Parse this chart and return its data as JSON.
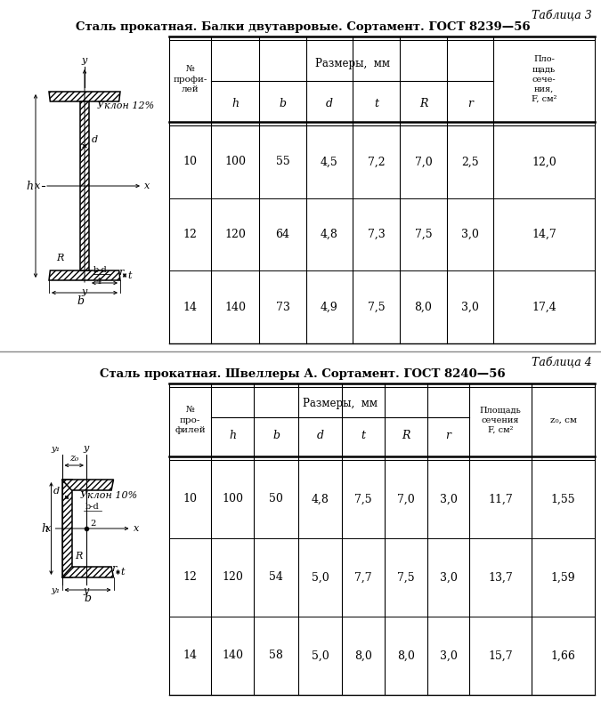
{
  "table3_title_label": "Таблица 3",
  "table3_title": "Сталь прокатная. Балки двутавровые. Сортамент. ГОСТ 8239—56",
  "table3_subheader": "Размеры,  мм",
  "table3_col_labels": [
    "№\nпрофи-\nлей",
    "h",
    "b",
    "d",
    "t",
    "R",
    "r",
    "Пло-\nщадь\nсече-\nния,\nF, см²"
  ],
  "table3_data": [
    [
      "10",
      "100",
      "55",
      "4,5",
      "7,2",
      "7,0",
      "2,5",
      "12,0"
    ],
    [
      "12",
      "120",
      "64",
      "4,8",
      "7,3",
      "7,5",
      "3,0",
      "14,7"
    ],
    [
      "14",
      "140",
      "73",
      "4,9",
      "7,5",
      "8,0",
      "3,0",
      "17,4"
    ]
  ],
  "table4_title_label": "Таблица 4",
  "table4_title": "Сталь прокатная. Швеллеры А. Сортамент. ГОСТ 8240—56",
  "table4_subheader": "Размеры,  мм",
  "table4_col_labels": [
    "№\nпро-\nфилей",
    "h",
    "b",
    "d",
    "t",
    "R",
    "r",
    "Площадь\nсечения\nF, см²",
    "z₀, см"
  ],
  "table4_data": [
    [
      "10",
      "100",
      "50",
      "4,8",
      "7,5",
      "7,0",
      "3,0",
      "11,7",
      "1,55"
    ],
    [
      "12",
      "120",
      "54",
      "5,0",
      "7,7",
      "7,5",
      "3,0",
      "13,7",
      "1,59"
    ],
    [
      "14",
      "140",
      "58",
      "5,0",
      "8,0",
      "8,0",
      "3,0",
      "15,7",
      "1,66"
    ]
  ]
}
